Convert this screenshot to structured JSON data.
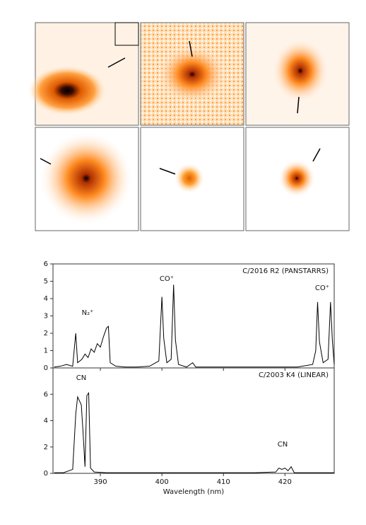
{
  "chart_data": [
    {
      "type": "line",
      "annotation_title": "C/2016 R2 (PANSTARRS)",
      "annotations": [
        "N₂⁺",
        "CO⁺",
        "CO⁺"
      ],
      "x": [
        382.5,
        383.5,
        384.5,
        385.5,
        386,
        386.3,
        387,
        387.5,
        388,
        388.5,
        389,
        389.5,
        390,
        390.5,
        391,
        391.3,
        391.6,
        392.5,
        394,
        396,
        398,
        399.5,
        400,
        400.3,
        400.8,
        401.5,
        401.9,
        402.2,
        402.7,
        404,
        405,
        405.5,
        408,
        411,
        414,
        417,
        420,
        422,
        424.5,
        425,
        425.3,
        425.6,
        426.2,
        427,
        427.4,
        427.7,
        428
      ],
      "series": [
        {
          "color": "#000000",
          "values": [
            0.05,
            0.1,
            0.2,
            0.1,
            2.0,
            0.3,
            0.5,
            0.8,
            0.6,
            1.1,
            0.9,
            1.4,
            1.2,
            1.8,
            2.3,
            2.4,
            0.3,
            0.1,
            0.05,
            0.05,
            0.1,
            0.4,
            4.1,
            1.7,
            0.3,
            0.5,
            4.8,
            1.6,
            0.2,
            0.05,
            0.3,
            0.05,
            0.05,
            0.05,
            0.05,
            0.05,
            0.05,
            0.05,
            0.2,
            1.0,
            3.8,
            1.5,
            0.3,
            0.5,
            3.8,
            1.6,
            0.2
          ]
        }
      ],
      "xlim": [
        382.3,
        428
      ],
      "xticks": [
        390,
        400,
        410,
        420
      ],
      "ylim": [
        0,
        6
      ],
      "yticks": [
        0,
        1,
        2,
        3,
        4,
        5,
        6
      ]
    },
    {
      "type": "line",
      "annotation_title": "C/2003 K4 (LINEAR)",
      "annotations": [
        "CN",
        "CN"
      ],
      "x": [
        382.5,
        384,
        385.5,
        386,
        386.3,
        386.6,
        386.9,
        387.2,
        387.5,
        387.8,
        388.1,
        388.4,
        389,
        391,
        395,
        400,
        405,
        410,
        415,
        418.5,
        419,
        419.5,
        420,
        420.5,
        421,
        421.5,
        425,
        428
      ],
      "series": [
        {
          "color": "#000000",
          "values": [
            0.05,
            0.05,
            0.3,
            4.5,
            5.8,
            5.5,
            5.2,
            3.0,
            0.5,
            5.9,
            6.1,
            0.4,
            0.1,
            0.05,
            0.05,
            0.05,
            0.05,
            0.05,
            0.05,
            0.1,
            0.4,
            0.3,
            0.4,
            0.2,
            0.5,
            0.05,
            0.05,
            0.05
          ]
        }
      ],
      "xlim": [
        382.3,
        428
      ],
      "xticks": [
        390,
        400,
        410,
        420
      ],
      "xlabel": "Wavelength (nm)",
      "ylim": [
        0,
        8
      ],
      "yticks": [
        0,
        2,
        4,
        6
      ]
    }
  ]
}
